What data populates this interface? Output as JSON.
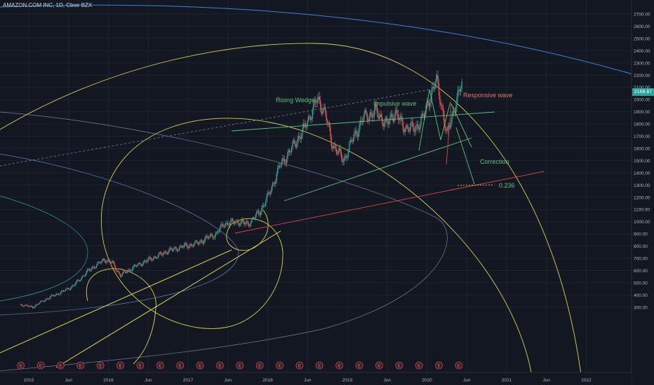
{
  "header": {
    "symbol_title": "AMAZON.COM INC, 1D, Cboe BZX"
  },
  "price_axis": {
    "ticks": [
      "2700.00",
      "2600.00",
      "2500.00",
      "2400.00",
      "2300.00",
      "2200.00",
      "2100.00",
      "2000.00",
      "1900.00",
      "1800.00",
      "1700.00",
      "1600.00",
      "1500.00",
      "1400.00",
      "1300.00",
      "1200.00",
      "1100.00",
      "1000.00",
      "900.00",
      "800.00",
      "700.00",
      "600.00",
      "500.00",
      "400.00",
      "300.00"
    ],
    "last_price": "2168.87",
    "last_price_color": "#26a69a"
  },
  "time_axis": {
    "ticks": [
      "2015",
      "Jun",
      "2016",
      "Jun",
      "2017",
      "Jun",
      "2018",
      "Jun",
      "2019",
      "Jun",
      "2020",
      "Jun",
      "2021",
      "Jun",
      "2022"
    ]
  },
  "annotations": {
    "rising_wedge": "Rising Wedge",
    "impulsive_wave": "Impulsive wave",
    "responsive_wave": "Responsive wave",
    "correction": "Correction",
    "fib_level": "0.236"
  },
  "earnings_marker": "E",
  "colors": {
    "background": "#131722",
    "up": "#26a69a",
    "down": "#ef5350",
    "spiral": "#d4d44c",
    "arc_blue": "#3f7fd6",
    "trend_red": "#e04646",
    "wedge_green": "#5fbf7a"
  }
}
